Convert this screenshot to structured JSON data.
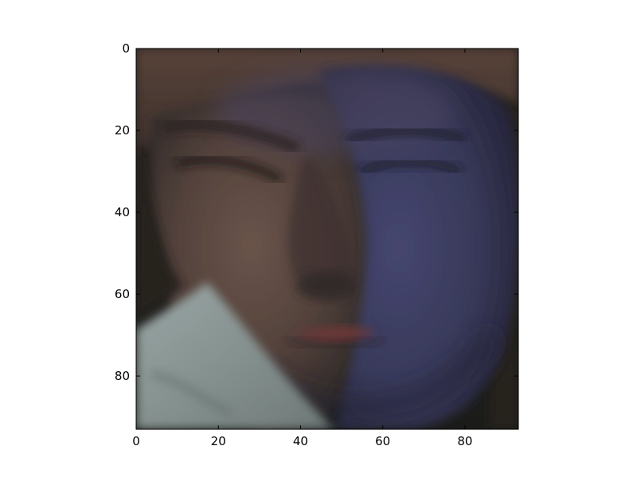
{
  "figure": {
    "background": "#ffffff",
    "axes": {
      "x_ticks": [
        "0",
        "20",
        "40",
        "60",
        "80"
      ],
      "y_ticks": [
        "0",
        "20",
        "40",
        "60",
        "80"
      ],
      "x_range": [
        0,
        93
      ],
      "y_range": [
        93,
        0
      ],
      "y_inverted": true
    },
    "image": {
      "subject": "close-up-face",
      "colors": {
        "hair": "#4a3a33",
        "skin_lit": "#5e4a43",
        "skin_shadow": "#3b3650",
        "shadow_blue": "#38395a",
        "shirt": "#8a9695",
        "background_dark": "#1f1e1c",
        "lips": "#6b3838"
      }
    }
  }
}
